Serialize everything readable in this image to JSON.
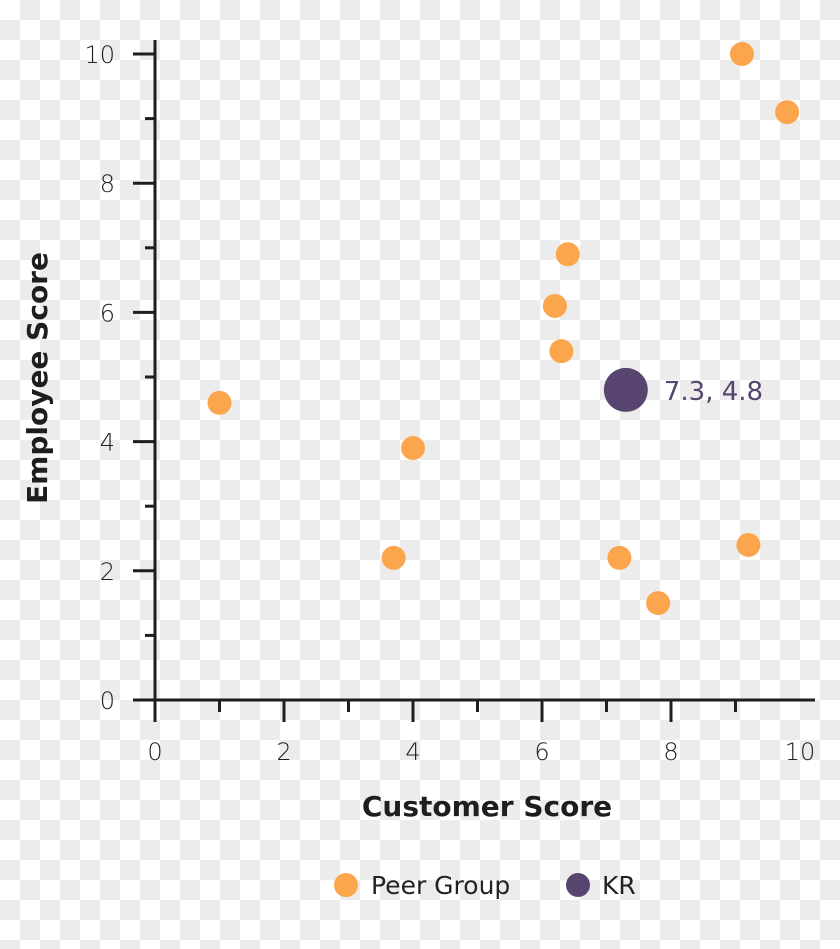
{
  "chart_data": {
    "type": "scatter",
    "title": "",
    "xlabel": "Customer Score",
    "ylabel": "Employee Score",
    "xlim": [
      0,
      10
    ],
    "ylim": [
      0,
      10
    ],
    "x_ticks": [
      "0",
      "2",
      "4",
      "6",
      "8",
      "10"
    ],
    "y_ticks": [
      "0",
      "2",
      "4",
      "6",
      "8",
      "10"
    ],
    "grid": false,
    "legend_position": "bottom",
    "series": [
      {
        "name": "Peer Group",
        "color": "#fba64c",
        "points": [
          {
            "x": 1.0,
            "y": 4.6
          },
          {
            "x": 3.7,
            "y": 2.2
          },
          {
            "x": 4.0,
            "y": 3.9
          },
          {
            "x": 6.2,
            "y": 6.1
          },
          {
            "x": 6.3,
            "y": 5.4
          },
          {
            "x": 6.4,
            "y": 6.9
          },
          {
            "x": 7.2,
            "y": 2.2
          },
          {
            "x": 7.8,
            "y": 1.5
          },
          {
            "x": 9.1,
            "y": 10.0
          },
          {
            "x": 9.2,
            "y": 2.4
          },
          {
            "x": 9.8,
            "y": 9.1
          }
        ]
      },
      {
        "name": "KR",
        "color": "#574570",
        "points": [
          {
            "x": 7.3,
            "y": 4.8
          }
        ]
      }
    ],
    "annotations": [
      {
        "text": "7.3, 4.8",
        "x": 7.3,
        "y": 4.8,
        "color": "#574570"
      }
    ]
  },
  "legend": {
    "items": [
      {
        "label": "Peer Group",
        "color": "#fba64c"
      },
      {
        "label": "KR",
        "color": "#574570"
      }
    ]
  }
}
